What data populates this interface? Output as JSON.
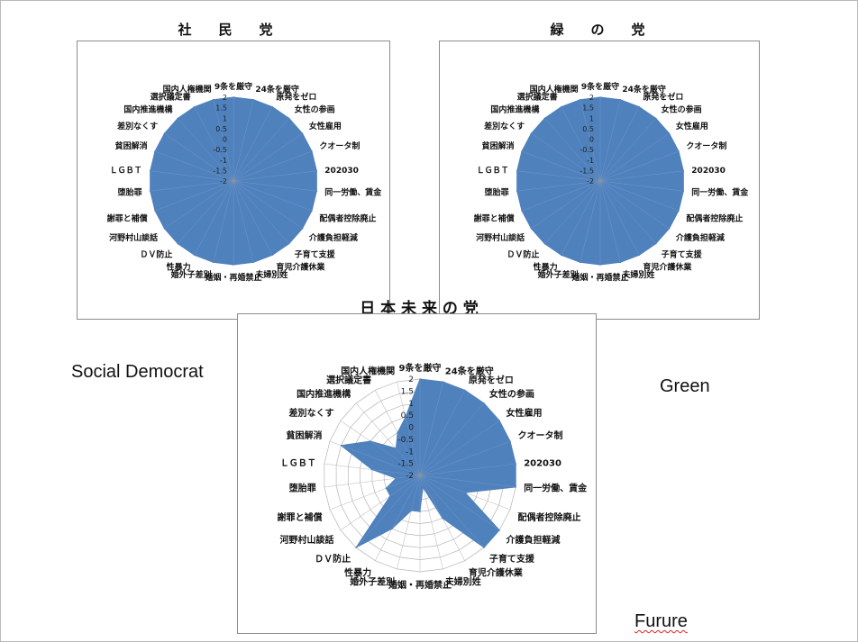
{
  "chart_data": [
    {
      "type": "radar",
      "title": "社　　民　　党",
      "axes": [
        "9条を厳守",
        "24条を厳守",
        "原発をゼロ",
        "女性の参画",
        "女性雇用",
        "クオータ制",
        "202030",
        "同一労働、賃金",
        "配偶者控除廃止",
        "介護負担軽減",
        "子育て支援",
        "育児介護休業",
        "夫婦別姓",
        "婚姻・再婚禁止",
        "婚外子差別",
        "性暴力",
        "ＤＶ防止",
        "河野村山談話",
        "謝罪と補償",
        "堕胎罪",
        "ＬＧＢＴ",
        "貧困解消",
        "差別なくす",
        "国内推進機構",
        "選択議定書",
        "国内人権機関"
      ],
      "series": [
        {
          "values": [
            2,
            2,
            2,
            2,
            2,
            2,
            2,
            2,
            2,
            2,
            2,
            2,
            2,
            2,
            2,
            2,
            2,
            2,
            2,
            2,
            2,
            2,
            2,
            2,
            2,
            2
          ]
        }
      ],
      "rlim": [
        -2,
        2
      ],
      "ticks": [
        "2",
        "1.5",
        "1",
        "0.5",
        "0",
        "-0.5",
        "-1",
        "-1.5",
        "-2"
      ],
      "color": "#4f81bd",
      "grid": true
    },
    {
      "type": "radar",
      "title": "緑　　の　　党",
      "axes": [
        "9条を厳守",
        "24条を厳守",
        "原発をゼロ",
        "女性の参画",
        "女性雇用",
        "クオータ制",
        "202030",
        "同一労働、賃金",
        "配偶者控除廃止",
        "介護負担軽減",
        "子育て支援",
        "育児介護休業",
        "夫婦別姓",
        "婚姻・再婚禁止",
        "婚外子差別",
        "性暴力",
        "ＤＶ防止",
        "河野村山談話",
        "謝罪と補償",
        "堕胎罪",
        "ＬＧＢＴ",
        "貧困解消",
        "差別なくす",
        "国内推進機構",
        "選択議定書",
        "国内人権機関"
      ],
      "series": [
        {
          "values": [
            2,
            2,
            2,
            2,
            2,
            2,
            2,
            2,
            2,
            2,
            2,
            2,
            2,
            2,
            2,
            2,
            2,
            2,
            2,
            2,
            2,
            2,
            2,
            2,
            2,
            2
          ]
        }
      ],
      "rlim": [
        -2,
        2
      ],
      "ticks": [
        "2",
        "1.5",
        "1",
        "0.5",
        "0",
        "-0.5",
        "-1",
        "-1.5",
        "-2"
      ],
      "color": "#4f81bd",
      "grid": true
    },
    {
      "type": "radar",
      "title": "日 本 未 来 の 党",
      "axes": [
        "9条を厳守",
        "24条を厳守",
        "原発をゼロ",
        "女性の参画",
        "女性雇用",
        "クオータ制",
        "202030",
        "同一労働、賃金",
        "配偶者控除廃止",
        "介護負担軽減",
        "子育て支援",
        "育児介護休業",
        "夫婦別姓",
        "婚姻・再婚禁止",
        "婚外子差別",
        "性暴力",
        "ＤＶ防止",
        "河野村山談話",
        "謝罪と補償",
        "堕胎罪",
        "ＬＧＢＴ",
        "貧困解消",
        "差別なくす",
        "国内推進機構",
        "選択議定書",
        "国内人権機関"
      ],
      "series": [
        {
          "values": [
            2,
            2,
            2,
            2,
            2,
            2,
            2,
            2,
            0,
            2,
            2,
            0,
            -1.5,
            -0.5,
            -0.5,
            0.5,
            2,
            -0.5,
            -0.5,
            -1,
            0,
            1.5,
            0.5,
            -0.5,
            0,
            0.5
          ]
        }
      ],
      "rlim": [
        -2,
        2
      ],
      "ticks": [
        "2",
        "1.5",
        "1",
        "0.5",
        "0",
        "-0.5",
        "-1",
        "-1.5",
        "-2"
      ],
      "color": "#4f81bd",
      "grid": true
    }
  ],
  "captions": {
    "social_democrat": "Social Democrat",
    "green": "Green",
    "future": "Furure"
  }
}
